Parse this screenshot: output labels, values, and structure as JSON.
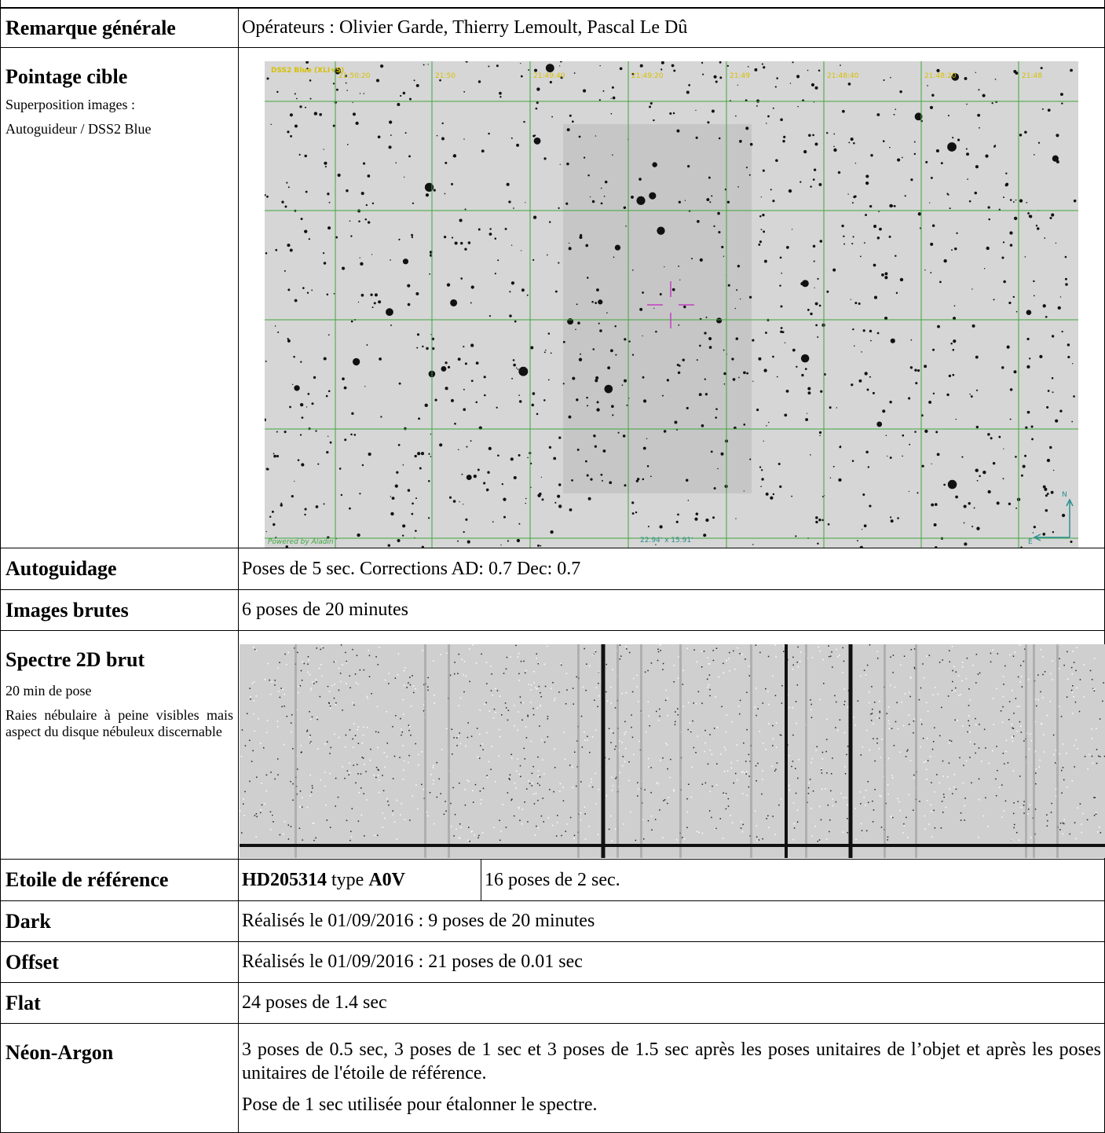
{
  "rows": [
    {
      "label": "Remarque générale",
      "content": "Opérateurs : Olivier Garde, Thierry Lemoult, Pascal Le Dû"
    },
    {
      "label": "Pointage cible",
      "notes": [
        "Superposition images :",
        "Autoguideur / DSS2 Blue"
      ],
      "image": {
        "survey": "DSS2 Blue (XLI+S)",
        "ra_labels": [
          "21:50:20",
          "21:50",
          "21:49:40",
          "21:49:20",
          "21:49",
          "21:48:40",
          "21:48:20",
          "21:48"
        ],
        "credit": "Powered by Aladin",
        "fov": "22.94' x 15.91'",
        "north": "N",
        "east": "E"
      }
    },
    {
      "label": "Autoguidage",
      "content": "Poses de 5 sec. Corrections AD: 0.7 Dec: 0.7"
    },
    {
      "label": "Images brutes",
      "content": "6 poses de 20 minutes"
    },
    {
      "label": "Spectre 2D brut",
      "notes": [
        "20 min de pose",
        "Raies nébulaire à peine visibles mais aspect du disque nébuleux discernable"
      ]
    },
    {
      "label": "Etoile de référence",
      "star": "HD205314",
      "type_word": "type",
      "spectral_type": "A0V",
      "content": "16 poses de 2 sec."
    },
    {
      "label": "Dark",
      "content": "Réalisés le 01/09/2016 : 9 poses de 20 minutes"
    },
    {
      "label": "Offset",
      "content": "Réalisés le 01/09/2016 : 21 poses de 0.01 sec"
    },
    {
      "label": "Flat",
      "content": "24 poses de 1.4 sec"
    },
    {
      "label": "Néon-Argon",
      "paragraphs": [
        "3 poses de 0.5 sec, 3 poses de 1 sec et 3 poses de 1.5 sec après les poses unitaires de l’objet et après les poses unitaires de l'étoile de référence.",
        "Pose de 1 sec utilisée pour étalonner le spectre."
      ]
    }
  ]
}
